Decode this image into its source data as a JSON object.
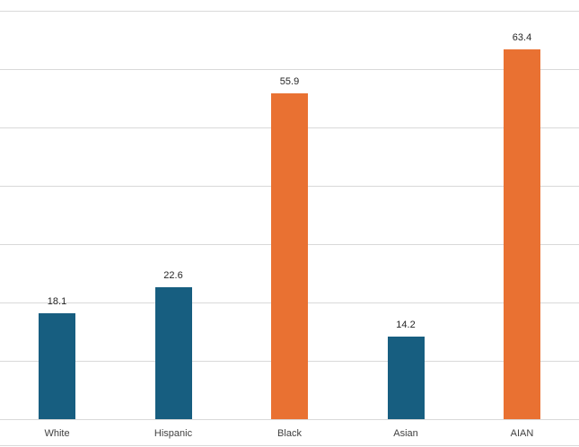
{
  "chart_data": {
    "type": "bar",
    "title": "",
    "xlabel": "",
    "ylabel": "",
    "categories": [
      "White",
      "Hispanic",
      "Black",
      "Asian",
      "AIAN"
    ],
    "values": [
      18.1,
      22.6,
      55.9,
      14.2,
      63.4
    ],
    "value_labels": [
      "18.1",
      "22.6",
      "55.9",
      "14.2",
      "63.4"
    ],
    "bar_colors": [
      "#175e80",
      "#175e80",
      "#e97132",
      "#175e80",
      "#e97132"
    ],
    "ylim": [
      0,
      70
    ],
    "ytick_step": 10,
    "y_axis_labels_visible": false,
    "grid": true,
    "legend": null
  },
  "colors": {
    "primary_bar": "#175e80",
    "highlight_bar": "#e97132",
    "gridline": "#d9d9d9"
  }
}
